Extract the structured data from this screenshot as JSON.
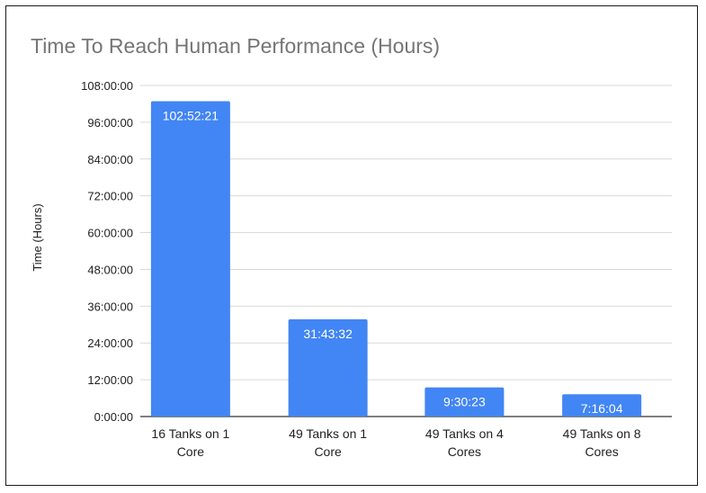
{
  "chart_data": {
    "type": "bar",
    "title": "Time To Reach Human Performance (Hours)",
    "ylabel": "Time (Hours)",
    "xlabel": "",
    "categories": [
      [
        "16 Tanks on 1",
        "Core"
      ],
      [
        "49 Tanks on 1",
        "Core"
      ],
      [
        "49 Tanks on 4",
        "Cores"
      ],
      [
        "49 Tanks on 8",
        "Cores"
      ]
    ],
    "values_seconds": [
      370341,
      114212,
      34223,
      26164
    ],
    "data_labels": [
      "102:52:21",
      "31:43:32",
      "9:30:23",
      "7:16:04"
    ],
    "ylim_seconds": [
      0,
      388800
    ],
    "y_ticks_seconds": [
      0,
      43200,
      86400,
      129600,
      172800,
      216000,
      259200,
      302400,
      345600,
      388800
    ],
    "y_tick_labels": [
      "0:00:00",
      "12:00:00",
      "24:00:00",
      "36:00:00",
      "48:00:00",
      "60:00:00",
      "72:00:00",
      "84:00:00",
      "96:00:00",
      "108:00:00"
    ],
    "grid": true,
    "legend": "none",
    "colors": {
      "bar": "#4285f4",
      "gridline": "#d9d9d9",
      "baseline": "#333333",
      "title": "#757575",
      "axis_text": "#222222",
      "data_label": "#ffffff"
    }
  }
}
